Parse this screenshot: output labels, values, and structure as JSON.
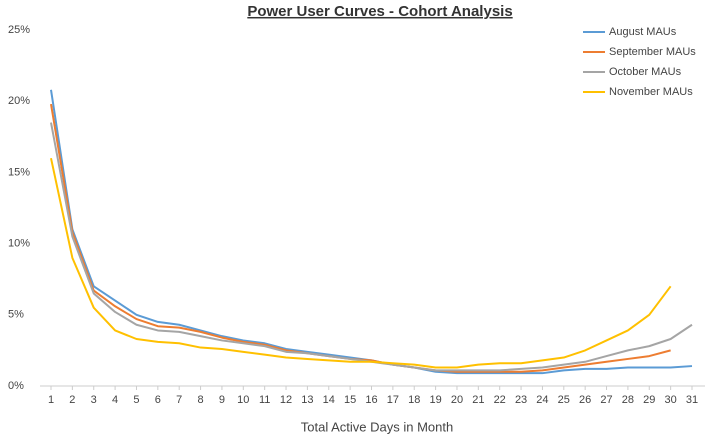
{
  "chart_data": {
    "type": "line",
    "title": "Power User Curves - Cohort Analysis",
    "x_label": "Total Active Days in Month",
    "x": [
      1,
      2,
      3,
      4,
      5,
      6,
      7,
      8,
      9,
      10,
      11,
      12,
      13,
      14,
      15,
      16,
      17,
      18,
      19,
      20,
      21,
      22,
      23,
      24,
      25,
      26,
      27,
      28,
      29,
      30,
      31
    ],
    "xlim": [
      1,
      31
    ],
    "ylim": [
      0,
      25
    ],
    "yticks": [
      {
        "value": 0,
        "label": "0%"
      },
      {
        "value": 5,
        "label": "5%"
      },
      {
        "value": 10,
        "label": "10%"
      },
      {
        "value": 15,
        "label": "15%"
      },
      {
        "value": 20,
        "label": "20%"
      },
      {
        "value": 25,
        "label": "25%"
      }
    ],
    "grid": false,
    "legend": "top-right",
    "series": [
      {
        "name": "August MAUs",
        "color": "#5b9bd5",
        "values": [
          20.8,
          11,
          7,
          6,
          5,
          4.5,
          4.3,
          3.9,
          3.5,
          3.2,
          3,
          2.6,
          2.4,
          2.2,
          2,
          1.8,
          1.5,
          1.3,
          1.0,
          0.9,
          0.9,
          0.9,
          0.9,
          0.9,
          1.1,
          1.2,
          1.2,
          1.3,
          1.3,
          1.3,
          1.4
        ]
      },
      {
        "name": "September MAUs",
        "color": "#ed7d31",
        "values": [
          19.8,
          10.8,
          6.7,
          5.6,
          4.7,
          4.2,
          4.1,
          3.8,
          3.4,
          3.1,
          2.9,
          2.5,
          2.3,
          2.1,
          1.9,
          1.8,
          1.5,
          1.3,
          1.1,
          1.0,
          1.0,
          1.0,
          1.0,
          1.1,
          1.3,
          1.5,
          1.7,
          1.9,
          2.1,
          2.5,
          null
        ]
      },
      {
        "name": "October MAUs",
        "color": "#a5a5a5",
        "values": [
          18.5,
          10.5,
          6.5,
          5.2,
          4.3,
          3.9,
          3.8,
          3.5,
          3.2,
          3.0,
          2.8,
          2.4,
          2.3,
          2.1,
          1.9,
          1.7,
          1.5,
          1.3,
          1.1,
          1.1,
          1.1,
          1.1,
          1.2,
          1.3,
          1.5,
          1.7,
          2.1,
          2.5,
          2.8,
          3.3,
          4.3
        ]
      },
      {
        "name": "November MAUs",
        "color": "#ffc000",
        "values": [
          16,
          9,
          5.5,
          3.9,
          3.3,
          3.1,
          3.0,
          2.7,
          2.6,
          2.4,
          2.2,
          2.0,
          1.9,
          1.8,
          1.7,
          1.7,
          1.6,
          1.5,
          1.3,
          1.3,
          1.5,
          1.6,
          1.6,
          1.8,
          2.0,
          2.5,
          3.2,
          3.9,
          5.0,
          7.0,
          null
        ]
      }
    ]
  }
}
